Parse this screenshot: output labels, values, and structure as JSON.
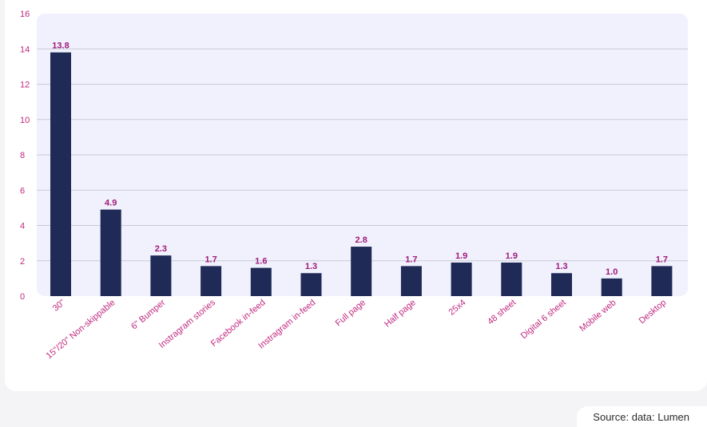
{
  "chart_data": {
    "type": "bar",
    "title": "",
    "xlabel": "",
    "ylabel": "",
    "categories": [
      "30\"",
      "15\"/20\" Non-skippable",
      "6\" Bumper",
      "Instragram stories",
      "Facebook in-feed",
      "Instragram in-feed",
      "Full page",
      "Half page",
      "25x4",
      "48 sheet",
      "Digital 6 sheet",
      "Mobile web",
      "Desktop"
    ],
    "values": [
      13.8,
      4.9,
      2.3,
      1.7,
      1.6,
      1.3,
      2.8,
      1.7,
      1.9,
      1.9,
      1.3,
      1.0,
      1.7
    ],
    "value_labels": [
      "13.8",
      "4.9",
      "2.3",
      "1.7",
      "1.6",
      "1.3",
      "2.8",
      "1.7",
      "1.9",
      "1.9",
      "1.3",
      "1.0",
      "1.7"
    ],
    "ylim": [
      0,
      16
    ],
    "yticks": [
      0,
      2,
      4,
      6,
      8,
      10,
      12,
      14,
      16
    ],
    "grid": true,
    "colors": {
      "bar": "#1f2a56",
      "value_label": "#a0197a",
      "tick_label": "#c0287f",
      "plot_bg": "#f0f1fd",
      "grid": "#c9cbd6"
    }
  },
  "source": "Source: data: Lumen"
}
